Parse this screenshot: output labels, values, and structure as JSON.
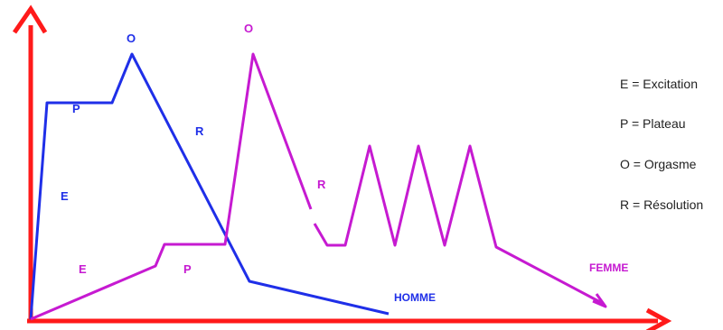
{
  "colors": {
    "axis": "#ff1a1a",
    "homme": "#1f2fe8",
    "femme": "#c61ad1",
    "legend_text": "#222222"
  },
  "homme": {
    "label": "HOMME",
    "phase_labels": {
      "E": "E",
      "P": "P",
      "O": "O",
      "R": "R"
    }
  },
  "femme": {
    "label": "FEMME",
    "phase_labels": {
      "E": "E",
      "P": "P",
      "O": "O",
      "R": "R"
    }
  },
  "legend": [
    "E = Excitation",
    "P = Plateau",
    "O = Orgasme",
    "R = Résolution"
  ]
}
